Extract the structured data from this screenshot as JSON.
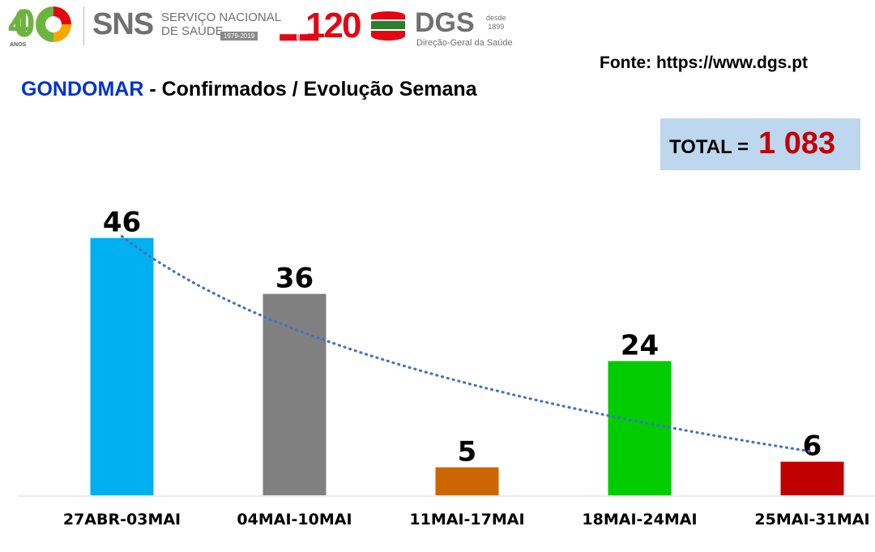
{
  "logos": {
    "sns40_number": "40",
    "sns40_anos": "ANOS",
    "sns_name": "SNS",
    "sns_line1": "SERVIÇO NACIONAL",
    "sns_line2": "DE SAÚDE",
    "sns_years": "1979-2019",
    "dgs120_number": "120",
    "dgs120_anos": "anos",
    "dgs_name": "DGS",
    "dgs_desde": "desde",
    "dgs_year": "1899",
    "dgs_sub": "Direção-Geral da Saúde"
  },
  "source": "Fonte: https://www.dgs.pt",
  "header": {
    "place": "GONDOMAR",
    "title_rest": " - Confirmados / Evolução Semana"
  },
  "total": {
    "label": "TOTAL = ",
    "value": "1 083"
  },
  "colors": {
    "bars": [
      "#00b0f0",
      "#808080",
      "#cc6600",
      "#00cc00",
      "#c00000"
    ],
    "trendline": "#4472c4",
    "total_value": "#c00000",
    "place": "#0033cc",
    "total_box": "#bdd7ee"
  },
  "chart_data": {
    "type": "bar",
    "categories": [
      "27ABR-03MAI",
      "04MAI-10MAI",
      "11MAI-17MAI",
      "18MAI-24MAI",
      "25MAI-31MAI"
    ],
    "values": [
      46,
      36,
      5,
      24,
      6
    ],
    "ylim": [
      0,
      50
    ],
    "trendline": "logarithmic, dotted",
    "grid": false,
    "legend": "none"
  }
}
